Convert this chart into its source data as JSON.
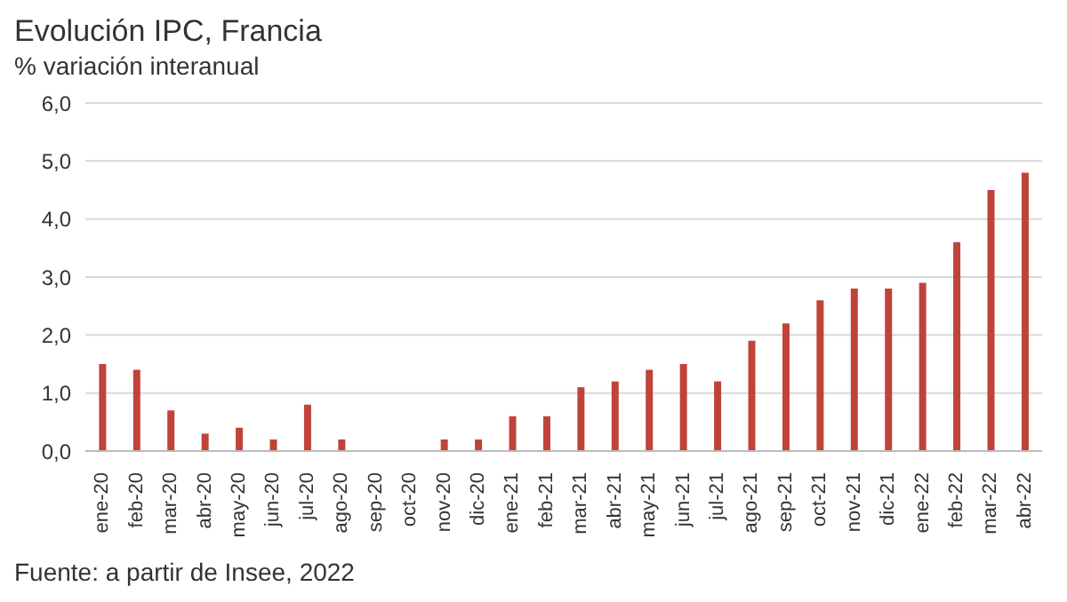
{
  "chart_data": {
    "type": "bar",
    "title": "Evolución IPC, Francia",
    "subtitle": "% variación interanual",
    "categories": [
      "ene-20",
      "feb-20",
      "mar-20",
      "abr-20",
      "may-20",
      "jun-20",
      "jul-20",
      "ago-20",
      "sep-20",
      "oct-20",
      "nov-20",
      "dic-20",
      "ene-21",
      "feb-21",
      "mar-21",
      "abr-21",
      "may-21",
      "jun-21",
      "jul-21",
      "ago-21",
      "sep-21",
      "oct-21",
      "nov-21",
      "dic-21",
      "ene-22",
      "feb-22",
      "mar-22",
      "abr-22"
    ],
    "values": [
      1.5,
      1.4,
      0.7,
      0.3,
      0.4,
      0.2,
      0.8,
      0.2,
      0.0,
      0.0,
      0.2,
      0.2,
      0.6,
      0.6,
      1.1,
      1.2,
      1.4,
      1.5,
      1.2,
      1.9,
      2.2,
      2.6,
      2.8,
      2.8,
      2.9,
      3.6,
      4.5,
      4.8
    ],
    "color": "#c0433a",
    "ylim": [
      0,
      6
    ],
    "yticks": [
      {
        "value": 0,
        "label": "0,0"
      },
      {
        "value": 1,
        "label": "1,0"
      },
      {
        "value": 2,
        "label": "2,0"
      },
      {
        "value": 3,
        "label": "3,0"
      },
      {
        "value": 4,
        "label": "4,0"
      },
      {
        "value": 5,
        "label": "5,0"
      },
      {
        "value": 6,
        "label": "6,0"
      }
    ],
    "grid": "y",
    "annotations": [
      "Fuente: a partir de Insee, 2022"
    ]
  }
}
